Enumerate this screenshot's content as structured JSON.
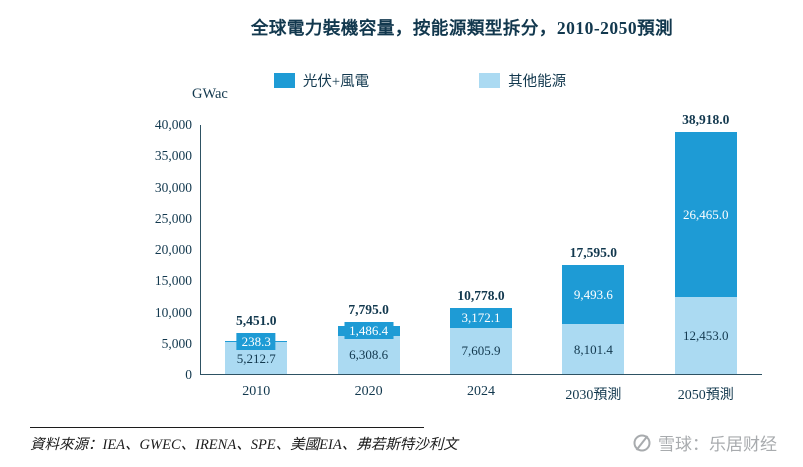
{
  "title": "全球電力裝機容量，按能源類型拆分，2010-2050預測",
  "unit_label": "GWac",
  "legend": [
    {
      "label": "光伏+風電",
      "color": "#1E9BD5"
    },
    {
      "label": "其他能源",
      "color": "#ABDAF2"
    }
  ],
  "chart_data": {
    "type": "bar",
    "stacked": true,
    "title": "全球電力裝機容量，按能源類型拆分，2010-2050預測",
    "ylabel": "GWac",
    "ylim": [
      0,
      40000
    ],
    "ytick_step": 5000,
    "ytick_labels": [
      "0",
      "5,000",
      "10,000",
      "15,000",
      "20,000",
      "25,000",
      "30,000",
      "35,000",
      "40,000"
    ],
    "grid": false,
    "legend_position": "top",
    "categories": [
      "2010",
      "2020",
      "2024",
      "2030預測",
      "2050預測"
    ],
    "series": [
      {
        "name": "光伏+風電",
        "color": "#1E9BD5",
        "values": [
          238.3,
          1486.4,
          3172.1,
          9493.6,
          26465.0
        ],
        "labels": [
          "238.3",
          "1,486.4",
          "3,172.1",
          "9,493.6",
          "26,465.0"
        ]
      },
      {
        "name": "其他能源",
        "color": "#ABDAF2",
        "values": [
          5212.7,
          6308.6,
          7605.9,
          8101.4,
          12453.0
        ],
        "labels": [
          "5,212.7",
          "6,308.6",
          "7,605.9",
          "8,101.4",
          "12,453.0"
        ]
      }
    ],
    "totals": [
      5451.0,
      7795.0,
      10778.0,
      17595.0,
      38918.0
    ],
    "total_labels": [
      "5,451.0",
      "7,795.0",
      "10,778.0",
      "17,595.0",
      "38,918.0"
    ]
  },
  "footer": {
    "source": "資料來源：IEA、GWEC、IRENA、SPE、美國EIA、弗若斯特沙利文"
  },
  "watermark": {
    "icon": "xueqiu-logo-icon",
    "text": "雪球：乐居财经"
  },
  "colors": {
    "text": "#12384E",
    "axis": "#2e5263",
    "pv": "#1E9BD5",
    "other": "#ABDAF2",
    "watermark": "#A8ABAE"
  }
}
